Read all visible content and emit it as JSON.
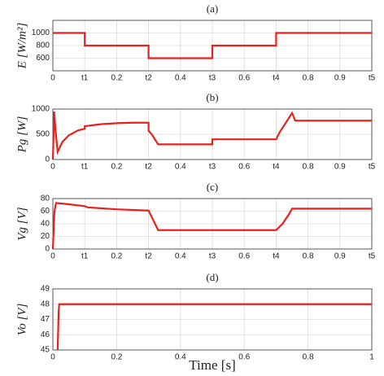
{
  "chart_data": [
    {
      "type": "line",
      "title": "(a)",
      "ylabel": "E [W/m²]",
      "color": "#e8201c",
      "grid": true,
      "x": [
        0,
        0.1,
        0.1,
        0.3,
        0.3,
        0.5,
        0.5,
        0.7,
        0.7,
        1
      ],
      "y": [
        1000,
        1000,
        800,
        800,
        600,
        600,
        800,
        800,
        1000,
        1000
      ],
      "xlim": [
        0,
        1
      ],
      "ylim": [
        400,
        1200
      ],
      "xticks": [
        0,
        {
          "value": 0.1,
          "label": "t1"
        },
        0.2,
        {
          "value": 0.3,
          "label": "t2"
        },
        0.4,
        {
          "value": 0.5,
          "label": "t3"
        },
        0.6,
        {
          "value": 0.7,
          "label": "t4"
        },
        0.8,
        0.9,
        {
          "value": 1,
          "label": "t5"
        }
      ],
      "yticks": [
        600,
        800,
        1000
      ]
    },
    {
      "type": "line",
      "title": "(b)",
      "ylabel": "Pg [W]",
      "color": "#e8201c",
      "grid": true,
      "x": [
        0,
        0.004,
        0.008,
        0.015,
        0.03,
        0.05,
        0.08,
        0.1,
        0.1,
        0.15,
        0.2,
        0.25,
        0.3,
        0.3,
        0.31,
        0.33,
        0.5,
        0.5,
        0.7,
        0.71,
        0.75,
        0.76,
        1
      ],
      "y": [
        0,
        950,
        600,
        150,
        350,
        480,
        580,
        610,
        660,
        700,
        720,
        730,
        730,
        570,
        500,
        300,
        300,
        400,
        400,
        530,
        920,
        770,
        770
      ],
      "xlim": [
        0,
        1
      ],
      "ylim": [
        0,
        1000
      ],
      "xticks": [
        0,
        {
          "value": 0.1,
          "label": "t1"
        },
        0.2,
        {
          "value": 0.3,
          "label": "t2"
        },
        0.4,
        {
          "value": 0.5,
          "label": "t3"
        },
        0.6,
        {
          "value": 0.7,
          "label": "t4"
        },
        0.8,
        0.9,
        {
          "value": 1,
          "label": "t5"
        }
      ],
      "yticks": [
        0,
        500,
        1000
      ]
    },
    {
      "type": "line",
      "title": "(c)",
      "ylabel": "Vg [V]",
      "color": "#e8201c",
      "grid": true,
      "x": [
        0,
        0.005,
        0.01,
        0.05,
        0.1,
        0.11,
        0.2,
        0.3,
        0.33,
        0.5,
        0.7,
        0.72,
        0.74,
        0.75,
        1
      ],
      "y": [
        0,
        60,
        73,
        71,
        68,
        66,
        63,
        61,
        30,
        30,
        30,
        40,
        55,
        64,
        64
      ],
      "xlim": [
        0,
        1
      ],
      "ylim": [
        0,
        80
      ],
      "xticks": [
        0,
        {
          "value": 0.1,
          "label": "t1"
        },
        0.2,
        {
          "value": 0.3,
          "label": "t2"
        },
        0.4,
        {
          "value": 0.5,
          "label": "t3"
        },
        0.6,
        {
          "value": 0.7,
          "label": "t4"
        },
        0.8,
        0.9,
        {
          "value": 1,
          "label": "t5"
        }
      ],
      "yticks": [
        0,
        20,
        40,
        60,
        80
      ]
    },
    {
      "type": "line",
      "title": "(d)",
      "ylabel": "Vo [V]",
      "xlabel": "Time [s]",
      "color": "#e8201c",
      "grid": true,
      "x": [
        0.015,
        0.018,
        0.02,
        1
      ],
      "y": [
        45,
        47.5,
        48,
        48
      ],
      "xlim": [
        0,
        1
      ],
      "ylim": [
        45,
        49
      ],
      "xticks": [
        0,
        0.2,
        0.4,
        0.6,
        0.8,
        1
      ],
      "yticks": [
        45,
        46,
        47,
        48,
        49
      ]
    }
  ]
}
